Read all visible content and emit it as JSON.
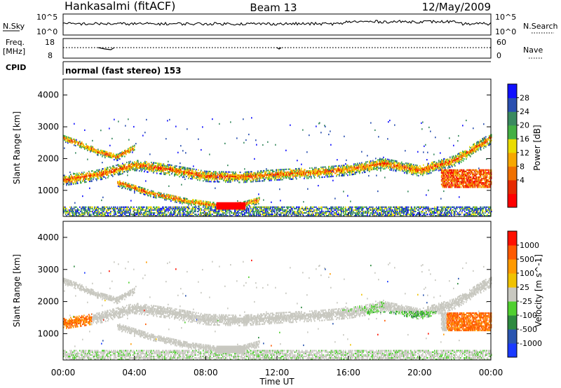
{
  "header": {
    "station": "Hankasalmi (fitACF)",
    "beam": "Beam 13",
    "date": "12/May/2009"
  },
  "noise_panel": {
    "left_label": "N.Sky",
    "left_ticks": [
      "10^5",
      "10^0"
    ],
    "right_label": "N.Search",
    "right_ticks": [
      "10^5",
      "10^0"
    ]
  },
  "freq_panel": {
    "left_label_top": "Freq.",
    "left_label_bottom": "[MHz]",
    "left_ticks": [
      "18",
      "8"
    ],
    "right_label": "Nave",
    "right_ticks": [
      "60",
      "0"
    ]
  },
  "cpid": {
    "label": "CPID",
    "mode_text": "normal (fast stereo) 153"
  },
  "colors": {
    "power": [
      "#1010ff",
      "#2a4fb0",
      "#3a8a60",
      "#44b044",
      "#eadc00",
      "#f7a800",
      "#f07000",
      "#e62a00",
      "#ff0000"
    ],
    "velocity": [
      "#ff1000",
      "#ff5a00",
      "#ff9a00",
      "#f0c200",
      "#c8c8c0",
      "#50d030",
      "#2e8a40",
      "#2a55b0",
      "#1a3aff"
    ]
  },
  "chart_data": [
    {
      "type": "heatmap",
      "panel": "power",
      "ylabel": "Slant Range [km]",
      "ylim": [
        180,
        4500
      ],
      "yticks": [
        "4000",
        "3000",
        "2000",
        "1000"
      ],
      "xlim": [
        0,
        24
      ],
      "colorbar_label": "Power [dB]",
      "colorbar_ticks": [
        "28",
        "24",
        "20",
        "16",
        "12",
        "8",
        "4"
      ],
      "features": [
        {
          "name": "main band",
          "x": [
            0,
            2,
            4,
            6,
            8,
            10,
            12,
            14,
            16,
            18,
            20,
            22,
            24
          ],
          "y": [
            1320,
            1500,
            1800,
            1650,
            1450,
            1420,
            1500,
            1560,
            1650,
            1850,
            1620,
            1950,
            2650
          ]
        },
        {
          "name": "lower arc",
          "x": [
            3,
            5,
            7,
            9,
            10,
            11
          ],
          "y": [
            1250,
            900,
            650,
            500,
            550,
            700
          ]
        },
        {
          "name": "upper arc",
          "x": [
            0,
            1,
            2,
            3,
            4
          ],
          "y": [
            2650,
            2450,
            2200,
            2050,
            2350
          ]
        }
      ]
    },
    {
      "type": "heatmap",
      "panel": "velocity",
      "ylabel": "Slant Range [km]",
      "ylim": [
        180,
        4500
      ],
      "yticks": [
        "4000",
        "3000",
        "2000",
        "1000"
      ],
      "xlim": [
        0,
        24
      ],
      "xlabel": "Time UT",
      "xticks": [
        "00:00",
        "04:00",
        "08:00",
        "12:00",
        "16:00",
        "20:00",
        "00:00"
      ],
      "colorbar_label": "Velocity [m s^-1]",
      "colorbar_ticks": [
        "1000",
        "500",
        "100",
        "25",
        "-25",
        "-100",
        "-500",
        "-1000"
      ]
    }
  ]
}
